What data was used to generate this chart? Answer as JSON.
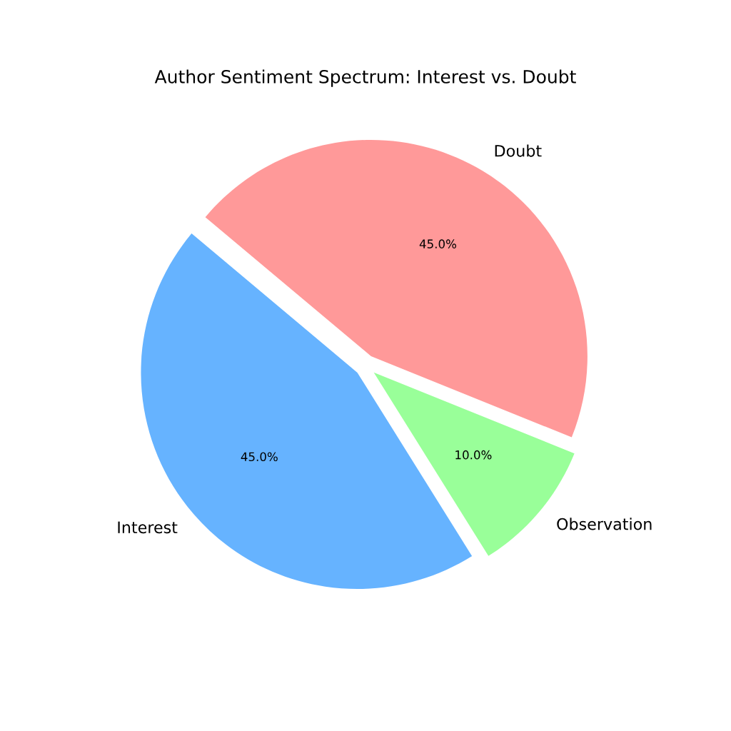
{
  "chart_data": {
    "type": "pie",
    "title": "Author Sentiment Spectrum: Interest vs. Doubt",
    "categories": [
      "Interest",
      "Observation",
      "Doubt"
    ],
    "values": [
      45,
      10,
      45
    ],
    "colors": [
      "#66b3ff",
      "#99ff99",
      "#ff9999"
    ],
    "value_labels": [
      "45.0%",
      "10.0%",
      "45.0%"
    ]
  }
}
